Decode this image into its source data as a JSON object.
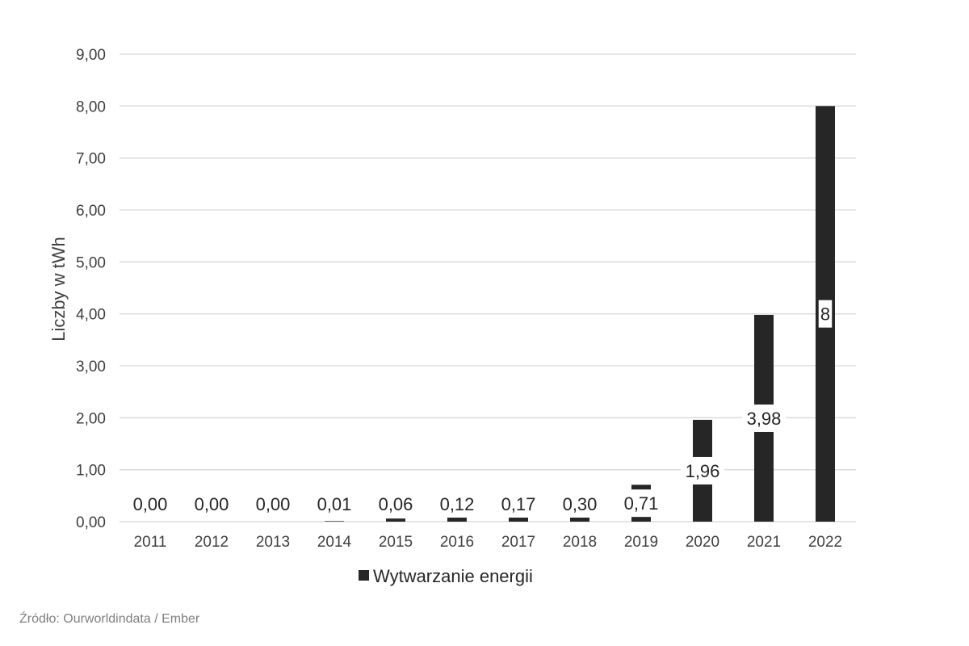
{
  "chart_data": {
    "type": "bar",
    "categories": [
      "2011",
      "2012",
      "2013",
      "2014",
      "2015",
      "2016",
      "2017",
      "2018",
      "2019",
      "2020",
      "2021",
      "2022"
    ],
    "series": [
      {
        "name": "Wytwarzanie energii",
        "values": [
          0.0,
          0.0,
          0.0,
          0.01,
          0.06,
          0.12,
          0.17,
          0.3,
          0.71,
          1.96,
          3.98,
          8
        ],
        "labels": [
          "0,00",
          "0,00",
          "0,00",
          "0,01",
          "0,06",
          "0,12",
          "0,17",
          "0,30",
          "0,71",
          "1,96",
          "3,98",
          "8"
        ]
      }
    ],
    "ylabel": "Liczby w tWh",
    "xlabel": "",
    "ylim": [
      0,
      9
    ],
    "yticks": [
      "0,00",
      "1,00",
      "2,00",
      "3,00",
      "4,00",
      "5,00",
      "6,00",
      "7,00",
      "8,00",
      "9,00"
    ],
    "grid": true,
    "legend_position": "bottom",
    "bar_color": "#262626"
  },
  "source_note": "Źródło: Ourworldindata / Ember"
}
